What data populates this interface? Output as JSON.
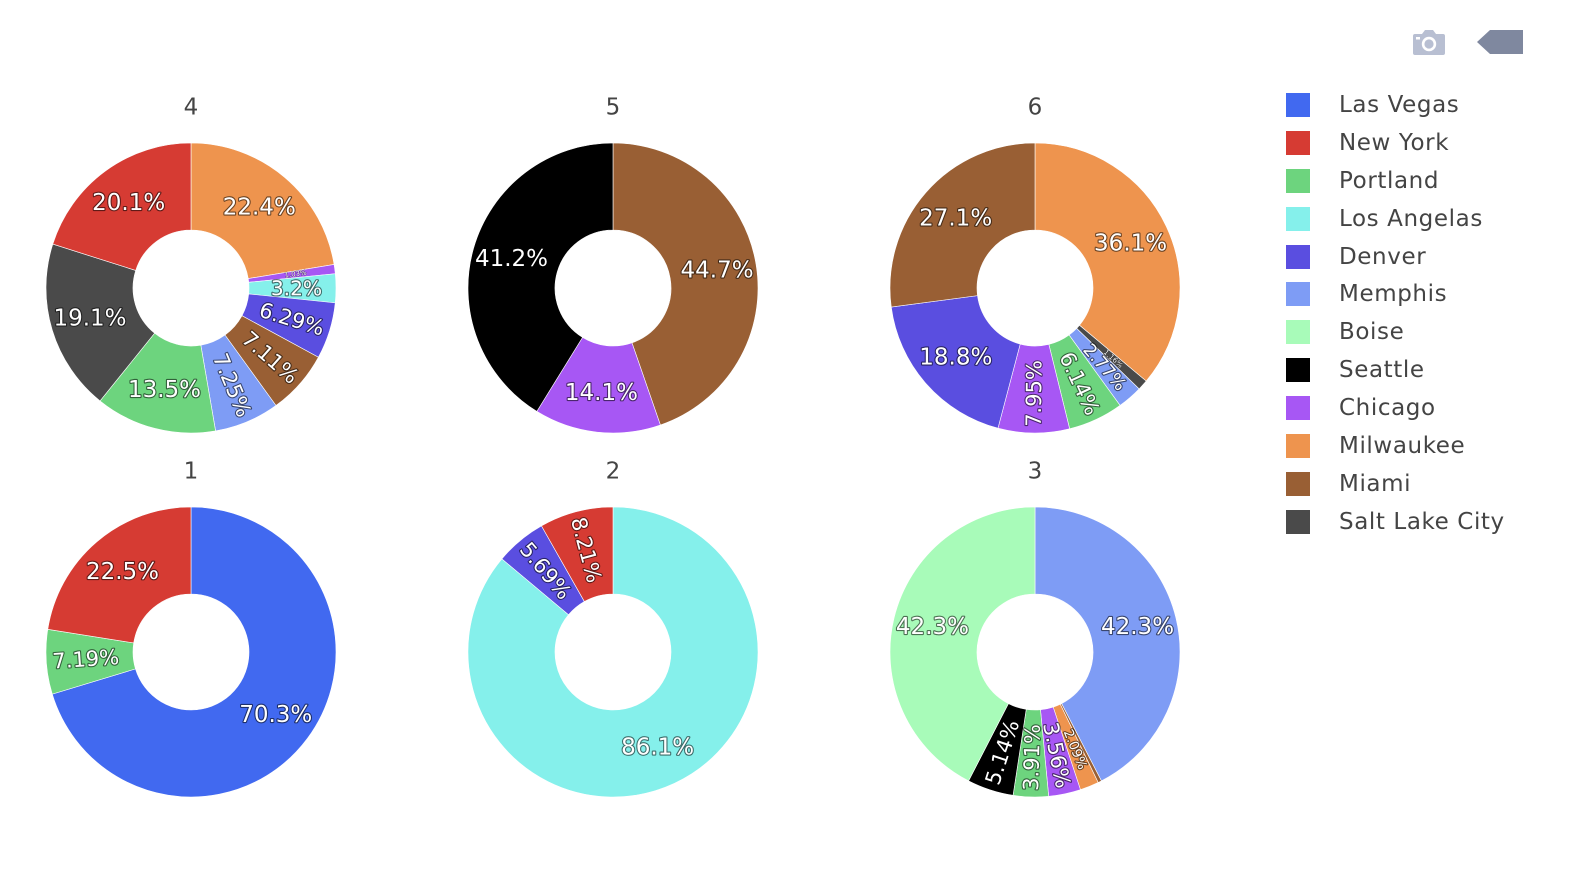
{
  "legend": [
    {
      "name": "Las Vegas",
      "color": "#4169f0"
    },
    {
      "name": "New York",
      "color": "#d63b33"
    },
    {
      "name": "Portland",
      "color": "#6dd47e"
    },
    {
      "name": "Los Angelas",
      "color": "#85f0eb"
    },
    {
      "name": "Denver",
      "color": "#5a4ee0"
    },
    {
      "name": "Memphis",
      "color": "#7e9cf5"
    },
    {
      "name": "Boise",
      "color": "#a8fbb9"
    },
    {
      "name": "Seattle",
      "color": "#000000"
    },
    {
      "name": "Chicago",
      "color": "#a757f4"
    },
    {
      "name": "Milwaukee",
      "color": "#ee944e"
    },
    {
      "name": "Miami",
      "color": "#995f34"
    },
    {
      "name": "Salt Lake City",
      "color": "#4a4a4a"
    }
  ],
  "toolbar": {
    "camera_icon": "camera-icon",
    "collapse_icon": "collapse-arrow-icon"
  },
  "chart_data": [
    {
      "type": "pie",
      "hole": 0.4,
      "title": "4",
      "slices": [
        {
          "label": "Milwaukee",
          "value": 22.4,
          "text": "22.4%"
        },
        {
          "label": "Chicago",
          "value": 1.03,
          "text": "1.03%"
        },
        {
          "label": "Los Angelas",
          "value": 3.2,
          "text": "3.2%"
        },
        {
          "label": "Denver",
          "value": 6.29,
          "text": "6.29%"
        },
        {
          "label": "Miami",
          "value": 7.11,
          "text": "7.11%"
        },
        {
          "label": "Memphis",
          "value": 7.25,
          "text": "7.25%"
        },
        {
          "label": "Portland",
          "value": 13.5,
          "text": "13.5%"
        },
        {
          "label": "Salt Lake City",
          "value": 19.1,
          "text": "19.1%"
        },
        {
          "label": "New York",
          "value": 20.1,
          "text": "20.1%"
        }
      ]
    },
    {
      "type": "pie",
      "hole": 0.4,
      "title": "5",
      "slices": [
        {
          "label": "Miami",
          "value": 44.7,
          "text": "44.7%"
        },
        {
          "label": "Chicago",
          "value": 14.1,
          "text": "14.1%"
        },
        {
          "label": "Seattle",
          "value": 41.2,
          "text": "41.2%"
        }
      ]
    },
    {
      "type": "pie",
      "hole": 0.4,
      "title": "6",
      "slices": [
        {
          "label": "Milwaukee",
          "value": 36.1,
          "text": "36.1%"
        },
        {
          "label": "Salt Lake City",
          "value": 1.16,
          "text": "1.16%"
        },
        {
          "label": "Memphis",
          "value": 2.77,
          "text": "2.77%"
        },
        {
          "label": "Portland",
          "value": 6.14,
          "text": "6.14%"
        },
        {
          "label": "Chicago",
          "value": 7.95,
          "text": "7.95%"
        },
        {
          "label": "Denver",
          "value": 18.8,
          "text": "18.8%"
        },
        {
          "label": "Miami",
          "value": 27.1,
          "text": "27.1%"
        }
      ]
    },
    {
      "type": "pie",
      "hole": 0.4,
      "title": "1",
      "slices": [
        {
          "label": "Las Vegas",
          "value": 70.3,
          "text": "70.3%"
        },
        {
          "label": "Portland",
          "value": 7.19,
          "text": "7.19%"
        },
        {
          "label": "New York",
          "value": 22.5,
          "text": "22.5%"
        }
      ]
    },
    {
      "type": "pie",
      "hole": 0.4,
      "title": "2",
      "slices": [
        {
          "label": "Los Angelas",
          "value": 86.1,
          "text": "86.1%"
        },
        {
          "label": "Denver",
          "value": 5.69,
          "text": "5.69%"
        },
        {
          "label": "New York",
          "value": 8.21,
          "text": "8.21%"
        }
      ]
    },
    {
      "type": "pie",
      "hole": 0.4,
      "title": "3",
      "slices": [
        {
          "label": "Memphis",
          "value": 42.3,
          "text": "42.3%"
        },
        {
          "label": "Miami",
          "value": 0.4,
          "text": ""
        },
        {
          "label": "Milwaukee",
          "value": 2.09,
          "text": "2.09%"
        },
        {
          "label": "Chicago",
          "value": 3.56,
          "text": "3.56%"
        },
        {
          "label": "Portland",
          "value": 3.91,
          "text": "3.91%"
        },
        {
          "label": "Seattle",
          "value": 5.14,
          "text": "5.14%"
        },
        {
          "label": "Boise",
          "value": 42.3,
          "text": "42.3%"
        }
      ]
    }
  ]
}
